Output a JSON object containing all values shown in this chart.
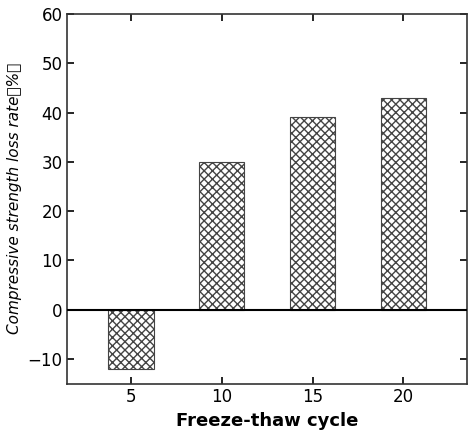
{
  "categories": [
    5,
    10,
    15,
    20
  ],
  "values": [
    -12,
    30,
    39,
    43
  ],
  "bar_width": 2.5,
  "bar_color": "white",
  "bar_edgecolor": "#444444",
  "hatch": "xxxx",
  "xlabel": "Freeze-thaw cycle",
  "ylabel": "Compressive strength loss rate（%）",
  "ylim": [
    -15,
    60
  ],
  "yticks": [
    -10,
    0,
    10,
    20,
    30,
    40,
    50,
    60
  ],
  "xlim": [
    1.5,
    23.5
  ],
  "xticks": [
    5,
    10,
    15,
    20
  ],
  "xlabel_fontsize": 13,
  "ylabel_fontsize": 11,
  "tick_fontsize": 12,
  "spine_linewidth": 1.2,
  "axhline_linewidth": 1.5
}
